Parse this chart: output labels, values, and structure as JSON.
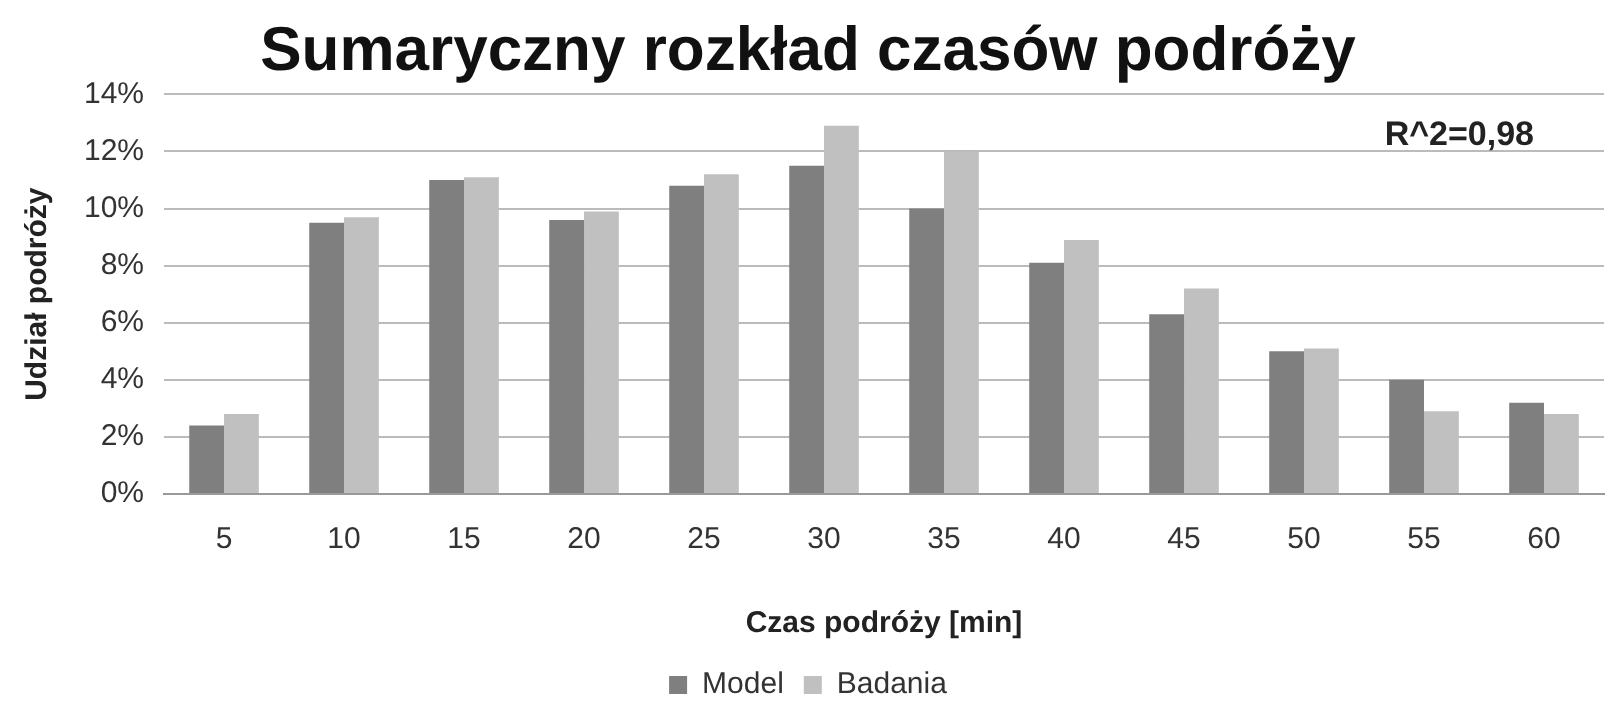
{
  "chart_data": {
    "type": "bar",
    "title": "Sumaryczny rozkład czasów podróży",
    "xlabel": "Czas podróży [min]",
    "ylabel": "Udział podróży",
    "categories": [
      "5",
      "10",
      "15",
      "20",
      "25",
      "30",
      "35",
      "40",
      "45",
      "50",
      "55",
      "60"
    ],
    "series": [
      {
        "name": "Model",
        "color": "#7f7f7f",
        "values": [
          2.4,
          9.5,
          11.0,
          9.6,
          10.8,
          11.5,
          10.0,
          8.1,
          6.3,
          5.0,
          4.0,
          3.2
        ]
      },
      {
        "name": "Badania",
        "color": "#c0c0c0",
        "values": [
          2.8,
          9.7,
          11.1,
          9.9,
          11.2,
          12.9,
          12.0,
          8.9,
          7.2,
          5.1,
          2.9,
          2.8
        ]
      }
    ],
    "ylim": [
      0,
      14
    ],
    "yticks": [
      {
        "value": 0,
        "label": "0%"
      },
      {
        "value": 2,
        "label": "2%"
      },
      {
        "value": 4,
        "label": "4%"
      },
      {
        "value": 6,
        "label": "6%"
      },
      {
        "value": 8,
        "label": "8%"
      },
      {
        "value": 10,
        "label": "10%"
      },
      {
        "value": 12,
        "label": "12%"
      },
      {
        "value": 14,
        "label": "14%"
      }
    ],
    "grid": "y",
    "legend": "bottom",
    "annotations": [
      "R^2=0,98"
    ]
  }
}
